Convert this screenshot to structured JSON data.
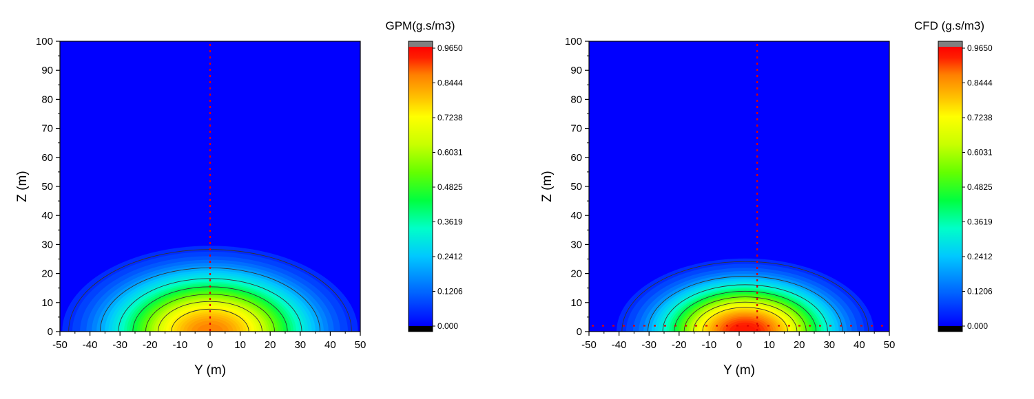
{
  "chart_data": [
    {
      "type": "heatmap",
      "title": "GPM(g.s/m3)",
      "xlabel": "Y (m)",
      "ylabel": "Z (m)",
      "xlim": [
        -50,
        50
      ],
      "ylim": [
        0,
        100
      ],
      "xticks": [
        -50,
        -40,
        -30,
        -20,
        -10,
        0,
        10,
        20,
        30,
        40,
        50
      ],
      "yticks": [
        0,
        10,
        20,
        30,
        40,
        50,
        60,
        70,
        80,
        90,
        100
      ],
      "colorbar": {
        "ticks": [
          "0.9650",
          "0.8444",
          "0.7238",
          "0.6031",
          "0.4825",
          "0.3619",
          "0.2412",
          "0.1206",
          "0.000"
        ],
        "range": [
          0,
          0.965
        ],
        "colors": [
          "#000000",
          "#0000ff",
          "#0064ff",
          "#00c8ff",
          "#00ffc8",
          "#00ff40",
          "#64ff00",
          "#c8ff00",
          "#ffff00",
          "#ffc000",
          "#ff7f00",
          "#ff2000",
          "#ff0000",
          "#808080"
        ]
      },
      "plume": {
        "center_y": 0,
        "max_value": 0.8,
        "sigma_y": 20,
        "sigma_z": 12
      },
      "contour_levels": [
        0.05,
        0.15,
        0.25,
        0.35,
        0.45,
        0.55,
        0.65
      ],
      "centerline_y": 0
    },
    {
      "type": "heatmap",
      "title": "CFD (g.s/m3)",
      "xlabel": "Y (m)",
      "ylabel": "Z (m)",
      "xlim": [
        -50,
        50
      ],
      "ylim": [
        0,
        100
      ],
      "xticks": [
        -50,
        -40,
        -30,
        -20,
        -10,
        0,
        10,
        20,
        30,
        40,
        50
      ],
      "yticks": [
        0,
        10,
        20,
        30,
        40,
        50,
        60,
        70,
        80,
        90,
        100
      ],
      "colorbar": {
        "ticks": [
          "0.9650",
          "0.8444",
          "0.7238",
          "0.6031",
          "0.4825",
          "0.3619",
          "0.2412",
          "0.1206",
          "0.000"
        ],
        "range": [
          0,
          0.965
        ],
        "colors": [
          "#000000",
          "#0000ff",
          "#0064ff",
          "#00c8ff",
          "#00ffc8",
          "#00ff40",
          "#64ff00",
          "#c8ff00",
          "#ffff00",
          "#ffc000",
          "#ff7f00",
          "#ff2000",
          "#ff0000",
          "#808080"
        ]
      },
      "plume": {
        "center_y": 2,
        "max_value": 0.92,
        "sigma_y": 17,
        "sigma_z": 10
      },
      "contour_levels": [
        0.05,
        0.15,
        0.25,
        0.35,
        0.45,
        0.55,
        0.65
      ],
      "centerline_y": 6,
      "ground_line_z": 2
    }
  ]
}
